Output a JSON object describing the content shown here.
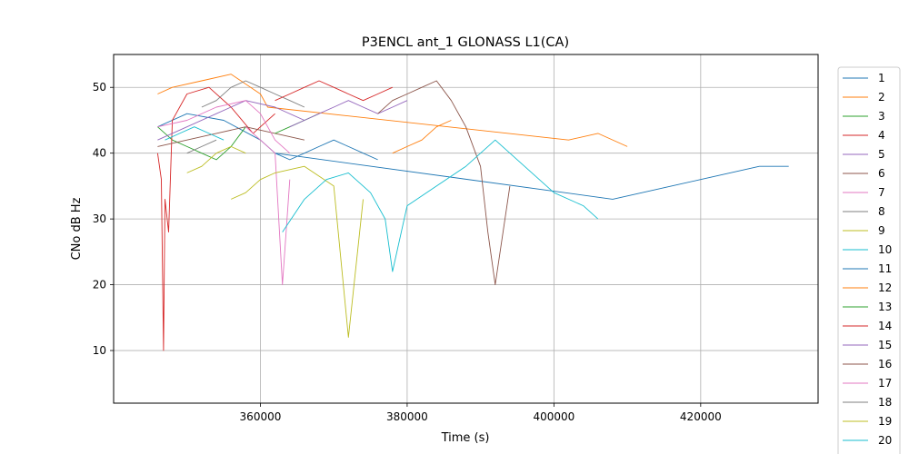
{
  "chart_data": {
    "type": "line",
    "title": "P3ENCL ant_1 GLONASS L1(CA)",
    "xlabel": "Time (s)",
    "ylabel": "CNo dB Hz",
    "xlim": [
      340000,
      436000
    ],
    "ylim": [
      2,
      55
    ],
    "xticks": [
      360000,
      380000,
      400000,
      420000
    ],
    "yticks": [
      10,
      20,
      30,
      40,
      50
    ],
    "grid": true,
    "legend_position": "right, outside plot",
    "series": [
      {
        "name": "1",
        "color": "#1f77b4",
        "x": [
          346000,
          350000,
          355000,
          360000,
          362000,
          408000,
          412000,
          416000,
          420000,
          424000,
          428000,
          432000
        ],
        "values": [
          44,
          46,
          45,
          42,
          40,
          33,
          34,
          35,
          36,
          37,
          38,
          38
        ]
      },
      {
        "name": "2",
        "color": "#ff7f0e",
        "x": [
          346000,
          348000,
          352000,
          356000,
          360000,
          361000,
          402000,
          406000,
          410000
        ],
        "values": [
          49,
          50,
          51,
          52,
          49,
          47,
          42,
          43,
          41
        ]
      },
      {
        "name": "3",
        "color": "#2ca02c",
        "x": [
          346000,
          347000,
          348000,
          350000,
          352000,
          354000,
          356000,
          358000
        ],
        "values": [
          44,
          43,
          42,
          41,
          40,
          39,
          41,
          44
        ]
      },
      {
        "name": "4",
        "color": "#d62728",
        "x": [
          346000,
          346500,
          346800,
          347000,
          347500,
          348000,
          350000,
          353000,
          356000,
          359000,
          362000
        ],
        "values": [
          40,
          36,
          10,
          33,
          28,
          45,
          49,
          50,
          47,
          43,
          46
        ]
      },
      {
        "name": "5",
        "color": "#9467bd",
        "x": [
          346000,
          350000,
          354000,
          358000,
          362000,
          366000
        ],
        "values": [
          42,
          44,
          46,
          48,
          47,
          45
        ]
      },
      {
        "name": "6",
        "color": "#8c564b",
        "x": [
          346000,
          350000,
          354000,
          358000,
          362000,
          366000
        ],
        "values": [
          41,
          42,
          43,
          44,
          43,
          42
        ]
      },
      {
        "name": "7",
        "color": "#e377c2",
        "x": [
          346000,
          350000,
          354000,
          358000,
          360000,
          362000,
          364000
        ],
        "values": [
          44,
          45,
          47,
          48,
          46,
          42,
          40
        ]
      },
      {
        "name": "8",
        "color": "#7f7f7f",
        "x": [
          352000,
          354000,
          356000,
          358000,
          360000,
          362000,
          364000,
          366000
        ],
        "values": [
          47,
          48,
          50,
          51,
          50,
          49,
          48,
          47
        ]
      },
      {
        "name": "9",
        "color": "#bcbd22",
        "x": [
          350000,
          352000,
          354000,
          356000,
          358000
        ],
        "values": [
          37,
          38,
          40,
          41,
          40
        ]
      },
      {
        "name": "10",
        "color": "#17becf",
        "x": [
          347000,
          349000,
          351000,
          353000,
          355000
        ],
        "values": [
          42,
          43,
          44,
          43,
          42
        ]
      },
      {
        "name": "11",
        "color": "#1f77b4",
        "x": [
          362000,
          364000,
          366000,
          368000,
          370000,
          372000,
          374000,
          376000
        ],
        "values": [
          40,
          39,
          40,
          41,
          42,
          41,
          40,
          39
        ]
      },
      {
        "name": "12",
        "color": "#ff7f0e",
        "x": [
          378000,
          380000,
          382000,
          384000,
          386000
        ],
        "values": [
          40,
          41,
          42,
          44,
          45
        ]
      },
      {
        "name": "13",
        "color": "#2ca02c",
        "x": [
          362000,
          364000,
          366000,
          368000
        ],
        "values": [
          43,
          44,
          45,
          46
        ]
      },
      {
        "name": "14",
        "color": "#d62728",
        "x": [
          362000,
          364000,
          366000,
          368000,
          370000,
          372000,
          374000,
          376000,
          378000
        ],
        "values": [
          48,
          49,
          50,
          51,
          50,
          49,
          48,
          49,
          50
        ]
      },
      {
        "name": "15",
        "color": "#9467bd",
        "x": [
          364000,
          366000,
          368000,
          370000,
          372000,
          374000,
          376000,
          378000,
          380000
        ],
        "values": [
          44,
          45,
          46,
          47,
          48,
          47,
          46,
          47,
          48
        ]
      },
      {
        "name": "16",
        "color": "#8c564b",
        "x": [
          376000,
          378000,
          380000,
          382000,
          384000,
          386000,
          388000,
          390000,
          391000,
          392000,
          394000
        ],
        "values": [
          46,
          48,
          49,
          50,
          51,
          48,
          44,
          38,
          28,
          20,
          35
        ]
      },
      {
        "name": "17",
        "color": "#e377c2",
        "x": [
          358000,
          360000,
          362000,
          363000,
          364000
        ],
        "values": [
          44,
          42,
          40,
          20,
          36
        ]
      },
      {
        "name": "18",
        "color": "#7f7f7f",
        "x": [
          350000,
          352000,
          354000
        ],
        "values": [
          40,
          41,
          42
        ]
      },
      {
        "name": "19",
        "color": "#bcbd22",
        "x": [
          356000,
          358000,
          360000,
          362000,
          366000,
          370000,
          372000,
          374000
        ],
        "values": [
          33,
          34,
          36,
          37,
          38,
          35,
          12,
          33
        ]
      },
      {
        "name": "20",
        "color": "#17becf",
        "x": [
          363000,
          366000,
          369000,
          372000,
          375000,
          377000,
          378000,
          380000,
          384000,
          388000,
          392000,
          396000,
          400000,
          404000,
          406000
        ],
        "values": [
          28,
          33,
          36,
          37,
          34,
          30,
          22,
          32,
          35,
          38,
          42,
          38,
          34,
          32,
          30
        ]
      }
    ]
  }
}
